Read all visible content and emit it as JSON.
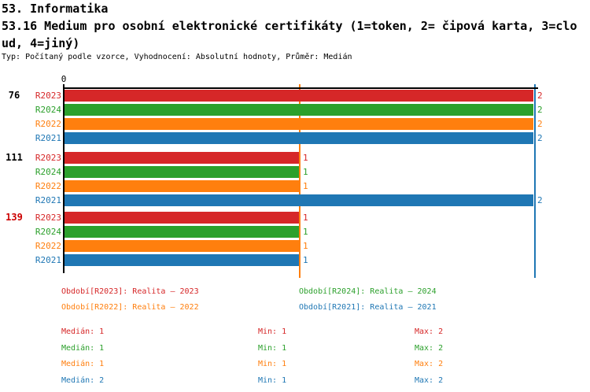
{
  "header": {
    "section_title": "53. Informatika",
    "indicator_title_line1": "53.16 Medium pro osobní elektronické certifikáty (1=token, 2= čipová karta, 3=clo",
    "indicator_title_line2": "ud, 4=jiný)",
    "meta": "Typ: Počítaný podle vzorce, Vyhodnocení: Absolutní hodnoty, Průměr: Medián"
  },
  "colors": {
    "red": "#d62728",
    "green": "#2ca02c",
    "orange": "#ff7f0e",
    "blue": "#1f77b4",
    "axis": "#000000",
    "group_label_default": "#000000",
    "group_label_highlight": "#cc0000",
    "background": "#ffffff"
  },
  "chart_data": {
    "type": "bar",
    "orientation": "horizontal",
    "title": "",
    "xlabel": "",
    "ylabel": "",
    "xlim": [
      0,
      2.02
    ],
    "x_ticks": [
      {
        "value": 0,
        "label": "0"
      }
    ],
    "grid": false,
    "categories": [
      "76",
      "111",
      "139"
    ],
    "category_label_colors": [
      "#000000",
      "#000000",
      "#cc0000"
    ],
    "series": [
      {
        "name": "R2023",
        "color": "#d62728",
        "values": [
          2,
          1,
          1
        ]
      },
      {
        "name": "R2024",
        "color": "#2ca02c",
        "values": [
          2,
          1,
          1
        ]
      },
      {
        "name": "R2022",
        "color": "#ff7f0e",
        "values": [
          2,
          1,
          1
        ]
      },
      {
        "name": "R2021",
        "color": "#1f77b4",
        "values": [
          2,
          2,
          1
        ]
      }
    ],
    "bar_value_labels": [
      [
        "2",
        "2",
        "2",
        "2"
      ],
      [
        "1",
        "1",
        "1",
        "2"
      ],
      [
        "1",
        "1",
        "1",
        "1"
      ]
    ],
    "median_lines": [
      {
        "series": "R2022",
        "value": 1,
        "color": "#ff7f0e"
      },
      {
        "series": "R2021",
        "value": 2,
        "color": "#1f77b4"
      }
    ]
  },
  "legend": {
    "items": [
      {
        "series": "R2023",
        "label": "Období[R2023]: Realita – 2023",
        "color": "#d62728"
      },
      {
        "series": "R2024",
        "label": "Období[R2024]: Realita – 2024",
        "color": "#2ca02c"
      },
      {
        "series": "R2022",
        "label": "Období[R2022]: Realita – 2022",
        "color": "#ff7f0e"
      },
      {
        "series": "R2021",
        "label": "Období[R2021]: Realita – 2021",
        "color": "#1f77b4"
      }
    ]
  },
  "stats": {
    "rows": [
      {
        "series": "R2023",
        "color": "#d62728",
        "median": "Medián: 1",
        "min": "Min: 1",
        "max": "Max: 2"
      },
      {
        "series": "R2024",
        "color": "#2ca02c",
        "median": "Medián: 1",
        "min": "Min: 1",
        "max": "Max: 2"
      },
      {
        "series": "R2022",
        "color": "#ff7f0e",
        "median": "Medián: 1",
        "min": "Min: 1",
        "max": "Max: 2"
      },
      {
        "series": "R2021",
        "color": "#1f77b4",
        "median": "Medián: 2",
        "min": "Min: 1",
        "max": "Max: 2"
      }
    ]
  }
}
